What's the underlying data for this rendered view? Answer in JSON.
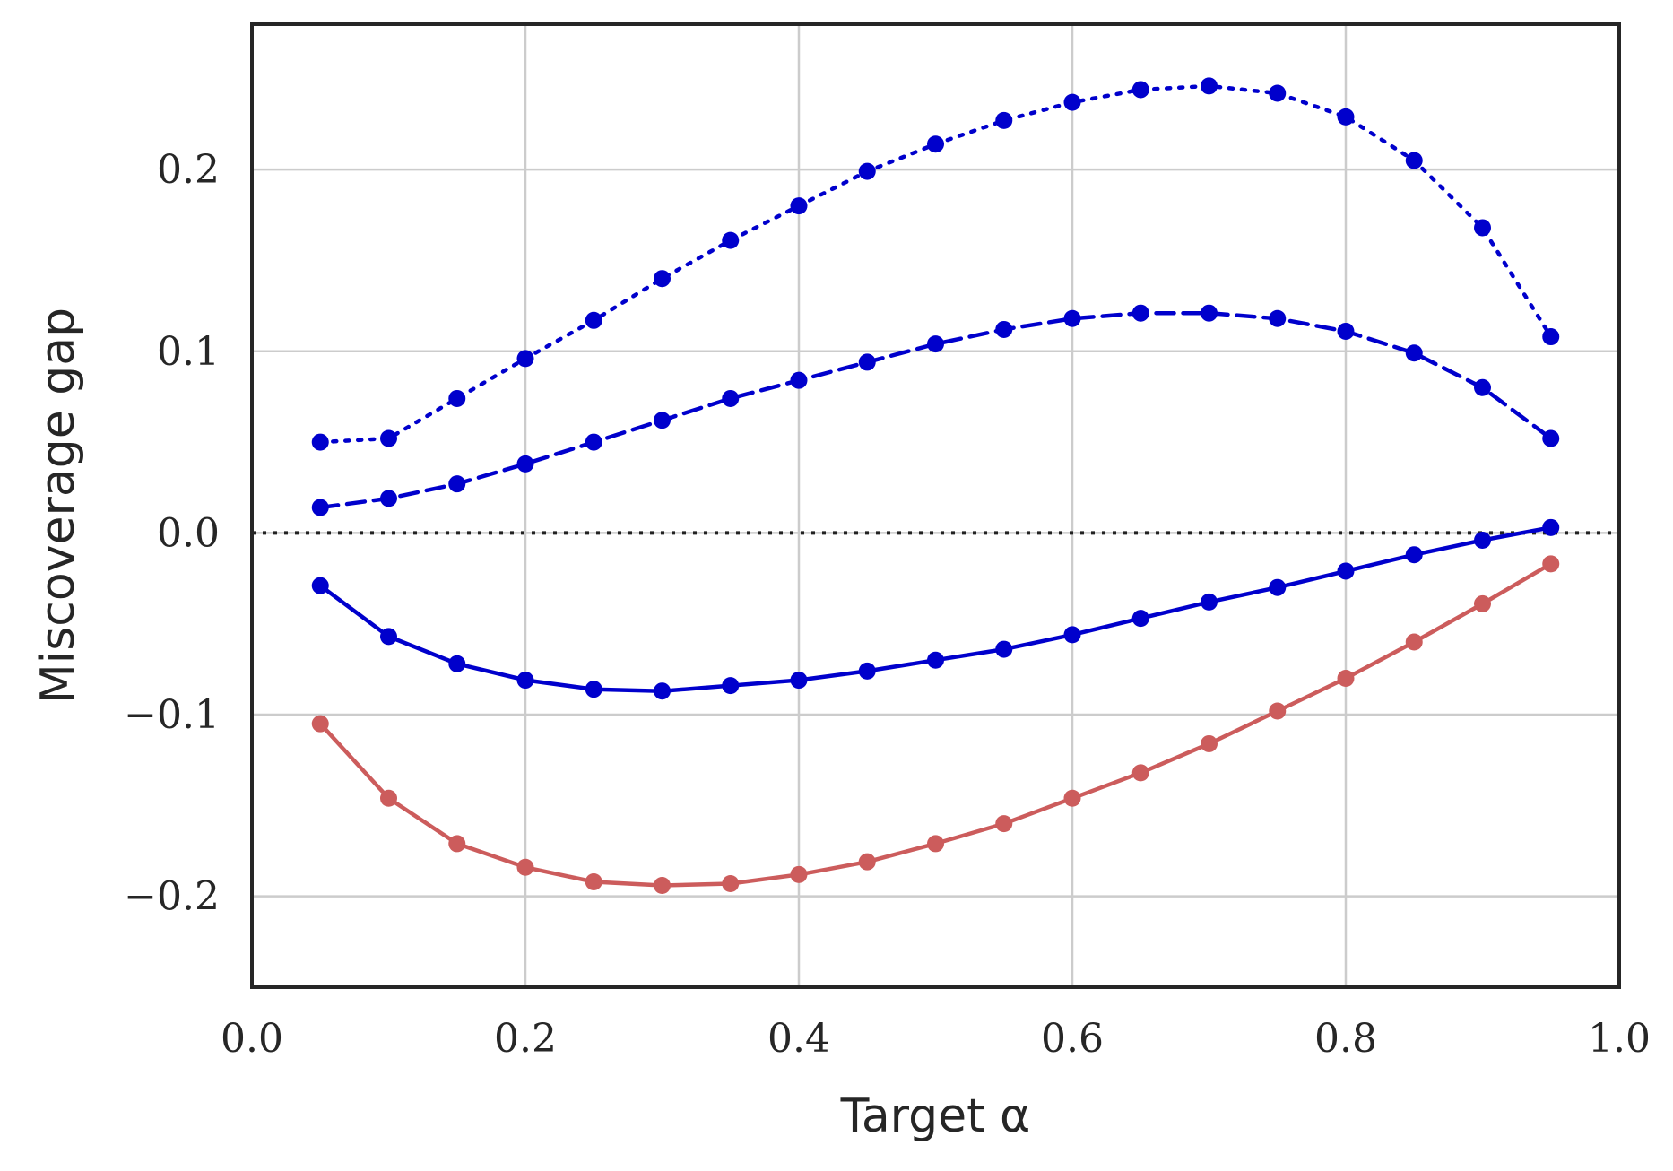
{
  "chart_data": {
    "type": "line",
    "xlabel": "Target α",
    "ylabel": "Miscoverage gap",
    "xlim": [
      0.0,
      1.0
    ],
    "ylim": [
      -0.25,
      0.28
    ],
    "xticks": [
      0.0,
      0.2,
      0.4,
      0.6,
      0.8,
      1.0
    ],
    "xtick_labels": [
      "0.0",
      "0.2",
      "0.4",
      "0.6",
      "0.8",
      "1.0"
    ],
    "yticks": [
      -0.2,
      -0.1,
      0.0,
      0.1,
      0.2
    ],
    "ytick_labels": [
      "−0.2",
      "−0.1",
      "0.0",
      "0.1",
      "0.2"
    ],
    "grid": true,
    "reference_line": {
      "y": 0.0,
      "style": "dotted",
      "color": "#222222"
    },
    "x": [
      0.05,
      0.1,
      0.15,
      0.2,
      0.25,
      0.3,
      0.35,
      0.4,
      0.45,
      0.5,
      0.55,
      0.6,
      0.65,
      0.7,
      0.75,
      0.8,
      0.85,
      0.9,
      0.95
    ],
    "series": [
      {
        "style": "dotted",
        "color": "#0000cc",
        "values": [
          0.05,
          0.052,
          0.074,
          0.096,
          0.117,
          0.14,
          0.161,
          0.18,
          0.199,
          0.214,
          0.227,
          0.237,
          0.244,
          0.246,
          0.242,
          0.229,
          0.205,
          0.168,
          0.108
        ]
      },
      {
        "style": "dashed",
        "color": "#0000cc",
        "values": [
          0.014,
          0.019,
          0.027,
          0.038,
          0.05,
          0.062,
          0.074,
          0.084,
          0.094,
          0.104,
          0.112,
          0.118,
          0.121,
          0.121,
          0.118,
          0.111,
          0.099,
          0.08,
          0.052
        ]
      },
      {
        "style": "solid",
        "color": "#0000cc",
        "values": [
          -0.029,
          -0.057,
          -0.072,
          -0.081,
          -0.086,
          -0.087,
          -0.084,
          -0.081,
          -0.076,
          -0.07,
          -0.064,
          -0.056,
          -0.047,
          -0.038,
          -0.03,
          -0.021,
          -0.012,
          -0.004,
          0.003
        ]
      },
      {
        "style": "solid",
        "color": "#cc5c5c",
        "values": [
          -0.105,
          -0.146,
          -0.171,
          -0.184,
          -0.192,
          -0.194,
          -0.193,
          -0.188,
          -0.181,
          -0.171,
          -0.16,
          -0.146,
          -0.132,
          -0.116,
          -0.098,
          -0.08,
          -0.06,
          -0.039,
          -0.017
        ]
      }
    ]
  }
}
